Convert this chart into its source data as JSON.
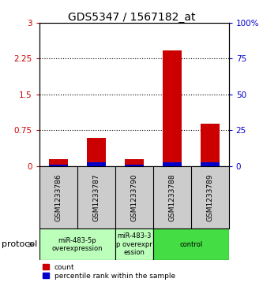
{
  "title": "GDS5347 / 1567182_at",
  "samples": [
    "GSM1233786",
    "GSM1233787",
    "GSM1233790",
    "GSM1233788",
    "GSM1233789"
  ],
  "red_values": [
    0.14,
    0.58,
    0.14,
    2.42,
    0.88
  ],
  "blue_percentile": [
    1.0,
    2.5,
    1.0,
    2.5,
    2.5
  ],
  "ylim_left": [
    0,
    3
  ],
  "ylim_right": [
    0,
    100
  ],
  "yticks_left": [
    0,
    0.75,
    1.5,
    2.25,
    3
  ],
  "yticks_right": [
    0,
    25,
    50,
    75,
    100
  ],
  "ytick_labels_left": [
    "0",
    "0.75",
    "1.5",
    "2.25",
    "3"
  ],
  "ytick_labels_right": [
    "0",
    "25",
    "50",
    "75",
    "100%"
  ],
  "red_color": "#cc0000",
  "blue_color": "#0000cc",
  "protocol_groups": [
    {
      "label": "miR-483-5p\noverexpression",
      "samples": [
        "GSM1233786",
        "GSM1233787"
      ],
      "color": "#bbffbb"
    },
    {
      "label": "miR-483-3\np overexpr\nession",
      "samples": [
        "GSM1233790"
      ],
      "color": "#bbffbb"
    },
    {
      "label": "control",
      "samples": [
        "GSM1233788",
        "GSM1233789"
      ],
      "color": "#44dd44"
    }
  ],
  "bg_color": "#ffffff",
  "sample_box_color": "#cccccc"
}
